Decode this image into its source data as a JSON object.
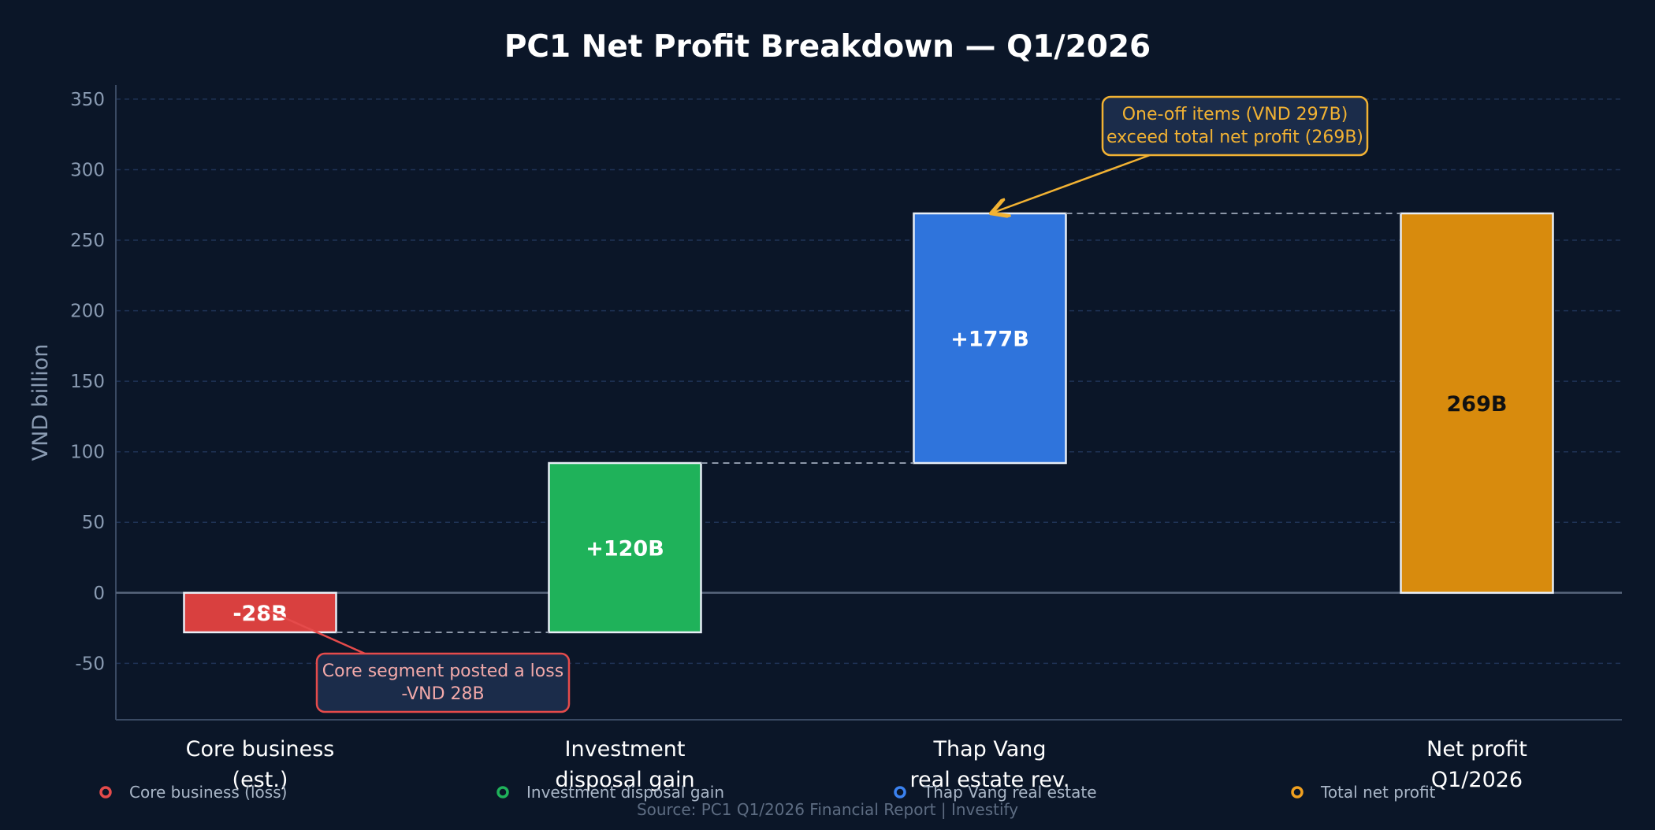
{
  "chart_data": {
    "type": "bar",
    "title": "PC1 Net Profit Breakdown — Q1/2026",
    "ylabel": "VND billion",
    "xlabel": "",
    "ylim": [
      -90,
      360
    ],
    "yticks": [
      -50,
      0,
      50,
      100,
      150,
      200,
      250,
      300,
      350
    ],
    "grid": true,
    "categories": [
      [
        "Core business",
        "(est.)"
      ],
      [
        "Investment",
        "disposal gain"
      ],
      [
        "Thap Vang",
        "real estate rev."
      ],
      [
        "Net profit",
        "Q1/2026"
      ]
    ],
    "steps": [
      {
        "kind": "delta",
        "value": -28,
        "label": "-28B",
        "color": "#d9403f"
      },
      {
        "kind": "delta",
        "value": 120,
        "label": "+120B",
        "color": "#1fb25a"
      },
      {
        "kind": "delta",
        "value": 177,
        "label": "+177B",
        "color": "#2f74dc"
      },
      {
        "kind": "total",
        "value": 269,
        "label": "269B",
        "color": "#d88b0d"
      }
    ],
    "annotations": [
      {
        "id": "core-loss",
        "lines": [
          "Core segment posted a loss",
          "-VND 28B"
        ],
        "color": "#e54b4b",
        "text_color": "#f2a9a9",
        "points_to_step": 0
      },
      {
        "id": "one-off",
        "lines": [
          "One-off items (VND 297B)",
          "exceed total net profit (269B)"
        ],
        "color": "#f2b233",
        "text_color": "#f2b233",
        "points_to_step": 2
      }
    ],
    "legend": {
      "placement": "bottom",
      "entries": [
        {
          "name": "Core business (loss)",
          "color": "#e54b4b"
        },
        {
          "name": "Investment disposal gain",
          "color": "#1fb25a"
        },
        {
          "name": "Thap Vang real estate",
          "color": "#3b82f0"
        },
        {
          "name": "Total net profit",
          "color": "#f0a020"
        }
      ]
    },
    "source": "Source: PC1 Q1/2026 Financial Report  |  Investify"
  }
}
